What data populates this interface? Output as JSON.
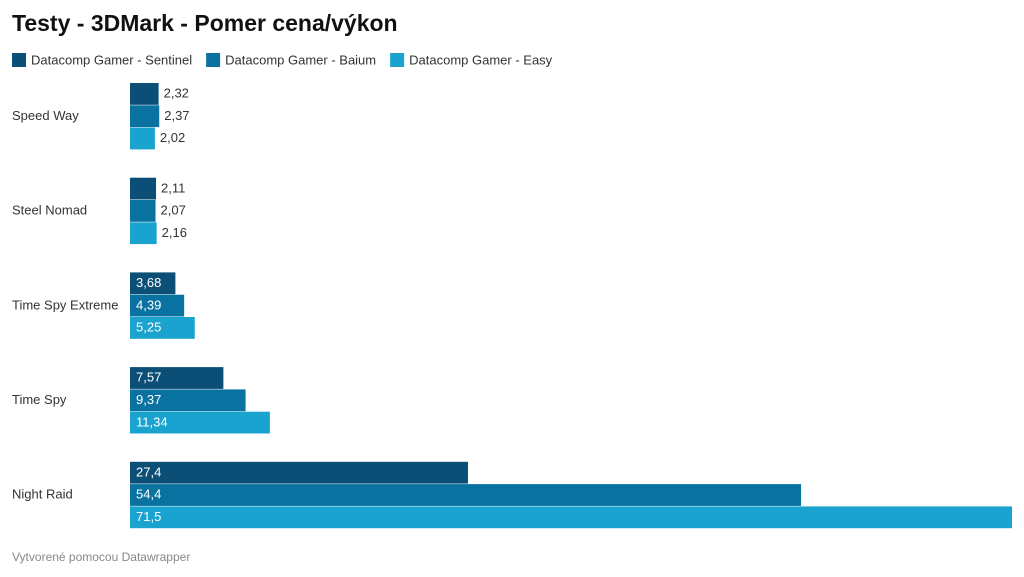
{
  "chart_data": {
    "type": "bar",
    "orientation": "horizontal",
    "title": "Testy - 3DMark - Pomer cena/výkon",
    "credit": "Vytvorené pomocou Datawrapper",
    "categories": [
      "Speed Way",
      "Steel Nomad",
      "Time Spy Extreme",
      "Time Spy",
      "Night Raid"
    ],
    "series": [
      {
        "name": "Datacomp Gamer - Sentinel",
        "color": "#0c4f76",
        "values": [
          2.32,
          2.11,
          3.68,
          7.57,
          27.4
        ],
        "value_labels": [
          "2,32",
          "2,11",
          "3,68",
          "7,57",
          "27,4"
        ]
      },
      {
        "name": "Datacomp Gamer - Baium",
        "color": "#0a72a0",
        "values": [
          2.37,
          2.07,
          4.39,
          9.37,
          54.4
        ],
        "value_labels": [
          "2,37",
          "2,07",
          "4,39",
          "9,37",
          "54,4"
        ]
      },
      {
        "name": "Datacomp Gamer - Easy",
        "color": "#1ba3cf",
        "values": [
          2.02,
          2.16,
          5.25,
          11.34,
          71.5
        ],
        "value_labels": [
          "2,02",
          "2,16",
          "5,25",
          "11,34",
          "71,5"
        ]
      }
    ]
  }
}
